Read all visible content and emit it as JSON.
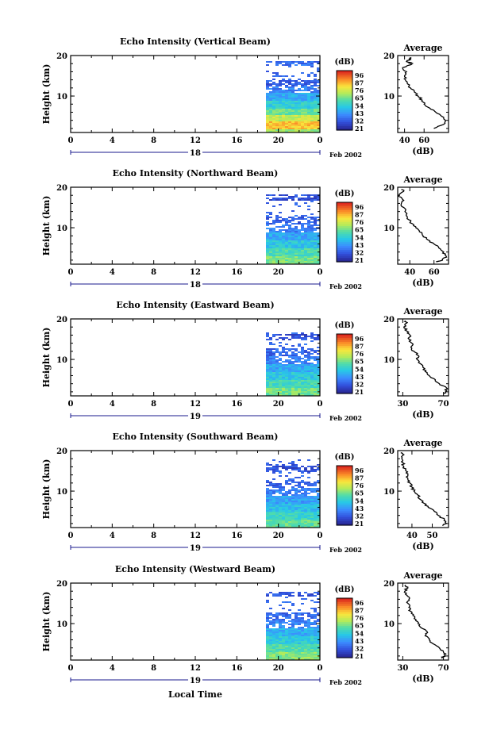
{
  "figure": {
    "xlabel": "Local Time",
    "date_label": "Feb 2002"
  },
  "chart_data": [
    {
      "type": "heatmap",
      "title": "Echo Intensity (Vertical Beam)",
      "ylabel": "Height (km)",
      "xlim": [
        0,
        24
      ],
      "ylim": [
        1,
        20
      ],
      "xticks": [
        "0",
        "4",
        "8",
        "12",
        "16",
        "20",
        "0"
      ],
      "yticks": [
        "10",
        "20"
      ],
      "day_label": "18",
      "data_start_hour": 18.8,
      "colorbar": {
        "unit": "(dB)",
        "ticks": [
          "96",
          "87",
          "76",
          "65",
          "54",
          "43",
          "32",
          "21"
        ]
      },
      "height_range_top": 19,
      "bands": [
        {
          "from": 1,
          "to": 2,
          "dB": 65
        },
        {
          "from": 2,
          "to": 4,
          "dB": 80
        },
        {
          "from": 4,
          "to": 5.5,
          "dB": 70
        },
        {
          "from": 5.5,
          "to": 7,
          "dB": 60
        },
        {
          "from": 7,
          "to": 9,
          "dB": 52
        },
        {
          "from": 9,
          "to": 11,
          "dB": 45
        },
        {
          "from": 11,
          "to": 12.5,
          "dB": 38
        },
        {
          "from": 12.5,
          "to": 14,
          "dB": 32
        },
        {
          "from": 17.5,
          "to": 19,
          "dB": 35
        }
      ],
      "average": {
        "title": "Average",
        "xlabel": "(dB)",
        "xlim": [
          33,
          85
        ],
        "xticks": [
          "40",
          "60"
        ],
        "yticks": [
          "10",
          "20"
        ],
        "profile": [
          [
            2,
            70
          ],
          [
            3,
            80
          ],
          [
            4,
            82
          ],
          [
            5,
            78
          ],
          [
            6,
            72
          ],
          [
            7,
            66
          ],
          [
            8,
            60
          ],
          [
            9,
            58
          ],
          [
            10,
            54
          ],
          [
            11,
            50
          ],
          [
            12,
            46
          ],
          [
            13,
            43
          ],
          [
            14,
            41
          ],
          [
            15,
            40
          ],
          [
            16,
            42
          ],
          [
            17,
            38
          ],
          [
            18,
            48
          ],
          [
            18.5,
            42
          ],
          [
            19,
            46
          ],
          [
            19.5,
            47
          ]
        ]
      }
    },
    {
      "type": "heatmap",
      "title": "Echo Intensity (Northward Beam)",
      "ylabel": "Height (km)",
      "xlim": [
        0,
        24
      ],
      "ylim": [
        1,
        20
      ],
      "xticks": [
        "0",
        "4",
        "8",
        "12",
        "16",
        "20",
        "0"
      ],
      "yticks": [
        "10",
        "20"
      ],
      "day_label": "18",
      "data_start_hour": 18.8,
      "colorbar": {
        "unit": "(dB)",
        "ticks": [
          "96",
          "87",
          "76",
          "65",
          "54",
          "43",
          "32",
          "21"
        ]
      },
      "height_range_top": 18.5,
      "bands": [
        {
          "from": 1,
          "to": 3,
          "dB": 62
        },
        {
          "from": 3,
          "to": 5,
          "dB": 57
        },
        {
          "from": 5,
          "to": 7,
          "dB": 50
        },
        {
          "from": 7,
          "to": 9,
          "dB": 44
        },
        {
          "from": 9,
          "to": 11,
          "dB": 38
        },
        {
          "from": 11,
          "to": 13,
          "dB": 33
        },
        {
          "from": 17,
          "to": 18.5,
          "dB": 30
        }
      ],
      "average": {
        "title": "Average",
        "xlabel": "(dB)",
        "xlim": [
          30,
          72
        ],
        "xticks": [
          "40",
          "60"
        ],
        "yticks": [
          "10",
          "20"
        ],
        "profile": [
          [
            1.5,
            62
          ],
          [
            2,
            67
          ],
          [
            3,
            70
          ],
          [
            4,
            68
          ],
          [
            5,
            64
          ],
          [
            6,
            60
          ],
          [
            7,
            55
          ],
          [
            8,
            51
          ],
          [
            9,
            48
          ],
          [
            10,
            45
          ],
          [
            11,
            42
          ],
          [
            12,
            39
          ],
          [
            13,
            37
          ],
          [
            14,
            36
          ],
          [
            15,
            35
          ],
          [
            16,
            33
          ],
          [
            17,
            34
          ],
          [
            18,
            31
          ],
          [
            19,
            35
          ],
          [
            19.5,
            33
          ]
        ]
      }
    },
    {
      "type": "heatmap",
      "title": "Echo Intensity (Eastward Beam)",
      "ylabel": "Height (km)",
      "xlim": [
        0,
        24
      ],
      "ylim": [
        1,
        20
      ],
      "xticks": [
        "0",
        "4",
        "8",
        "12",
        "16",
        "20",
        "0"
      ],
      "yticks": [
        "10",
        "20"
      ],
      "day_label": "19",
      "data_start_hour": 18.8,
      "colorbar": {
        "unit": "(dB)",
        "ticks": [
          "96",
          "87",
          "76",
          "65",
          "54",
          "43",
          "32",
          "21"
        ]
      },
      "height_range_top": 17,
      "bands": [
        {
          "from": 1,
          "to": 3,
          "dB": 62
        },
        {
          "from": 3,
          "to": 5,
          "dB": 56
        },
        {
          "from": 5,
          "to": 7,
          "dB": 50
        },
        {
          "from": 7,
          "to": 9,
          "dB": 44
        },
        {
          "from": 9,
          "to": 11,
          "dB": 38
        },
        {
          "from": 11,
          "to": 13,
          "dB": 33
        },
        {
          "from": 15,
          "to": 16.5,
          "dB": 30
        }
      ],
      "average": {
        "title": "Average",
        "xlabel": "(dB)",
        "xlim": [
          25,
          75
        ],
        "xticks": [
          "30",
          "70"
        ],
        "yticks": [
          "10",
          "20"
        ],
        "profile": [
          [
            1.5,
            70
          ],
          [
            2,
            72
          ],
          [
            3,
            73
          ],
          [
            4,
            66
          ],
          [
            5,
            62
          ],
          [
            6,
            56
          ],
          [
            7,
            52
          ],
          [
            8,
            50
          ],
          [
            9,
            47
          ],
          [
            10,
            44
          ],
          [
            11,
            45
          ],
          [
            12,
            41
          ],
          [
            13,
            38
          ],
          [
            14,
            39
          ],
          [
            15,
            36
          ],
          [
            16,
            37
          ],
          [
            17,
            34
          ],
          [
            18,
            31
          ],
          [
            19,
            34
          ],
          [
            19.5,
            33
          ]
        ]
      }
    },
    {
      "type": "heatmap",
      "title": "Echo Intensity (Southward Beam)",
      "ylabel": "Height (km)",
      "xlim": [
        0,
        24
      ],
      "ylim": [
        1,
        20
      ],
      "xticks": [
        "0",
        "4",
        "8",
        "12",
        "16",
        "20",
        "0"
      ],
      "yticks": [
        "10",
        "20"
      ],
      "day_label": "19",
      "data_start_hour": 18.8,
      "colorbar": {
        "unit": "(dB)",
        "ticks": [
          "96",
          "87",
          "76",
          "65",
          "54",
          "43",
          "32",
          "21"
        ]
      },
      "height_range_top": 18,
      "bands": [
        {
          "from": 1,
          "to": 3,
          "dB": 60
        },
        {
          "from": 3,
          "to": 5,
          "dB": 54
        },
        {
          "from": 5,
          "to": 7,
          "dB": 48
        },
        {
          "from": 7,
          "to": 9,
          "dB": 43
        },
        {
          "from": 9,
          "to": 11,
          "dB": 38
        },
        {
          "from": 11,
          "to": 13,
          "dB": 33
        },
        {
          "from": 15,
          "to": 17,
          "dB": 30
        }
      ],
      "average": {
        "title": "Average",
        "xlabel": "(dB)",
        "xlim": [
          33,
          58
        ],
        "xticks": [
          "40",
          "50"
        ],
        "yticks": [
          "10",
          "20"
        ],
        "profile": [
          [
            1.5,
            55
          ],
          [
            2,
            57
          ],
          [
            3,
            56
          ],
          [
            4,
            53
          ],
          [
            5,
            51
          ],
          [
            6,
            48
          ],
          [
            7,
            46
          ],
          [
            8,
            44
          ],
          [
            9,
            43
          ],
          [
            10,
            41
          ],
          [
            11,
            40
          ],
          [
            12,
            39
          ],
          [
            13,
            38
          ],
          [
            14,
            38
          ],
          [
            15,
            37
          ],
          [
            16,
            36
          ],
          [
            17,
            35.5
          ],
          [
            18,
            35
          ],
          [
            19,
            36
          ],
          [
            19.5,
            34.5
          ]
        ]
      }
    },
    {
      "type": "heatmap",
      "title": "Echo Intensity (Westward Beam)",
      "ylabel": "Height (km)",
      "xlim": [
        0,
        24
      ],
      "ylim": [
        1,
        20
      ],
      "xticks": [
        "0",
        "4",
        "8",
        "12",
        "16",
        "20",
        "0"
      ],
      "yticks": [
        "10",
        "20"
      ],
      "day_label": "19",
      "data_start_hour": 18.8,
      "colorbar": {
        "unit": "(dB)",
        "ticks": [
          "96",
          "87",
          "76",
          "65",
          "54",
          "43",
          "32",
          "21"
        ]
      },
      "height_range_top": 18,
      "bands": [
        {
          "from": 1,
          "to": 3,
          "dB": 64
        },
        {
          "from": 3,
          "to": 5,
          "dB": 58
        },
        {
          "from": 5,
          "to": 7,
          "dB": 51
        },
        {
          "from": 7,
          "to": 9,
          "dB": 45
        },
        {
          "from": 9,
          "to": 11,
          "dB": 39
        },
        {
          "from": 11,
          "to": 13,
          "dB": 34
        },
        {
          "from": 17,
          "to": 18,
          "dB": 31
        }
      ],
      "average": {
        "title": "Average",
        "xlabel": "(dB)",
        "xlim": [
          25,
          75
        ],
        "xticks": [
          "30",
          "70"
        ],
        "yticks": [
          "10",
          "20"
        ],
        "profile": [
          [
            1.5,
            68
          ],
          [
            2,
            72
          ],
          [
            3,
            70
          ],
          [
            4,
            66
          ],
          [
            5,
            60
          ],
          [
            6,
            56
          ],
          [
            7,
            52
          ],
          [
            8,
            54
          ],
          [
            9,
            48
          ],
          [
            10,
            45
          ],
          [
            11,
            43
          ],
          [
            12,
            40
          ],
          [
            13,
            38
          ],
          [
            14,
            36
          ],
          [
            15,
            35
          ],
          [
            16,
            36
          ],
          [
            17,
            34
          ],
          [
            18,
            32
          ],
          [
            19,
            35
          ],
          [
            19.5,
            33
          ]
        ]
      }
    }
  ]
}
